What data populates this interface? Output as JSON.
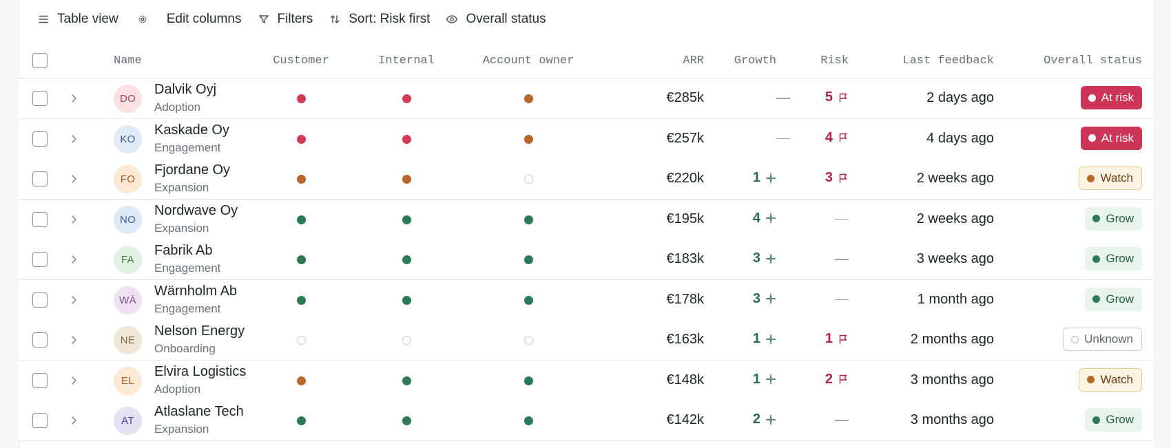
{
  "toolbar": {
    "table_view": "Table view",
    "edit_columns": "Edit columns",
    "filters": "Filters",
    "sort": "Sort: Risk first",
    "overall_status": "Overall status"
  },
  "columns": {
    "name": "Name",
    "customer": "Customer",
    "internal": "Internal",
    "account_owner": "Account owner",
    "arr": "ARR",
    "growth": "Growth",
    "risk": "Risk",
    "last_feedback": "Last feedback",
    "overall_status": "Overall status"
  },
  "colors": {
    "red": "#d13b58",
    "orange": "#b8672a",
    "green": "#2d7a58",
    "risk_text": "#b3224a",
    "growth_text": "#2d6b4d"
  },
  "rows": [
    {
      "initials": "DO",
      "name": "Dalvik Oyj",
      "segment": "Adoption",
      "customer": "red",
      "internal": "red",
      "owner": "orange",
      "arr": "€285k",
      "growth": "",
      "risk": "5",
      "last": "2 days ago",
      "status": "At risk",
      "status_kind": "atrisk",
      "avatar_bg": "#fbe1e3",
      "avatar_fg": "#b04352"
    },
    {
      "initials": "KO",
      "name": "Kaskade Oy",
      "segment": "Engagement",
      "customer": "red",
      "internal": "red",
      "owner": "orange",
      "arr": "€257k",
      "growth": "",
      "risk": "4",
      "last": "4 days ago",
      "status": "At risk",
      "status_kind": "atrisk",
      "avatar_bg": "#e1eaf8",
      "avatar_fg": "#3c5e96"
    },
    {
      "initials": "FO",
      "name": "Fjordane Oy",
      "segment": "Expansion",
      "customer": "orange",
      "internal": "orange",
      "owner": "empty",
      "arr": "€220k",
      "growth": "1",
      "risk": "3",
      "last": "2 weeks ago",
      "status": "Watch",
      "status_kind": "watch",
      "avatar_bg": "#fde8d4",
      "avatar_fg": "#a65a22"
    },
    {
      "initials": "NO",
      "name": "Nordwave Oy",
      "segment": "Expansion",
      "customer": "green",
      "internal": "green",
      "owner": "green",
      "arr": "€195k",
      "growth": "4",
      "risk": "",
      "last": "2 weeks ago",
      "status": "Grow",
      "status_kind": "grow",
      "avatar_bg": "#dde9f9",
      "avatar_fg": "#3a62a0"
    },
    {
      "initials": "FA",
      "name": "Fabrik Ab",
      "segment": "Engagement",
      "customer": "green",
      "internal": "green",
      "owner": "green",
      "arr": "€183k",
      "growth": "3",
      "risk": "",
      "last": "3 weeks ago",
      "status": "Grow",
      "status_kind": "grow",
      "avatar_bg": "#e1f2e2",
      "avatar_fg": "#3f7d4c"
    },
    {
      "initials": "WÄ",
      "name": "Wärnholm Ab",
      "segment": "Engagement",
      "customer": "green",
      "internal": "green",
      "owner": "green",
      "arr": "€178k",
      "growth": "3",
      "risk": "",
      "last": "1 month ago",
      "status": "Grow",
      "status_kind": "grow",
      "avatar_bg": "#eee1f2",
      "avatar_fg": "#7a4a8c"
    },
    {
      "initials": "NE",
      "name": "Nelson Energy",
      "segment": "Onboarding",
      "customer": "empty",
      "internal": "empty",
      "owner": "empty",
      "arr": "€163k",
      "growth": "1",
      "risk": "1",
      "last": "2 months ago",
      "status": "Unknown",
      "status_kind": "unknown",
      "avatar_bg": "#efe6d6",
      "avatar_fg": "#7b6645"
    },
    {
      "initials": "EL",
      "name": "Elvira Logistics",
      "segment": "Adoption",
      "customer": "orange",
      "internal": "green",
      "owner": "green",
      "arr": "€148k",
      "growth": "1",
      "risk": "2",
      "last": "3 months ago",
      "status": "Watch",
      "status_kind": "watch",
      "avatar_bg": "#fde8d4",
      "avatar_fg": "#a65a22"
    },
    {
      "initials": "AT",
      "name": "Atlaslane Tech",
      "segment": "Expansion",
      "customer": "green",
      "internal": "green",
      "owner": "green",
      "arr": "€142k",
      "growth": "2",
      "risk": "",
      "last": "3 months ago",
      "status": "Grow",
      "status_kind": "grow",
      "avatar_bg": "#e4e1f5",
      "avatar_fg": "#4f4890"
    }
  ]
}
